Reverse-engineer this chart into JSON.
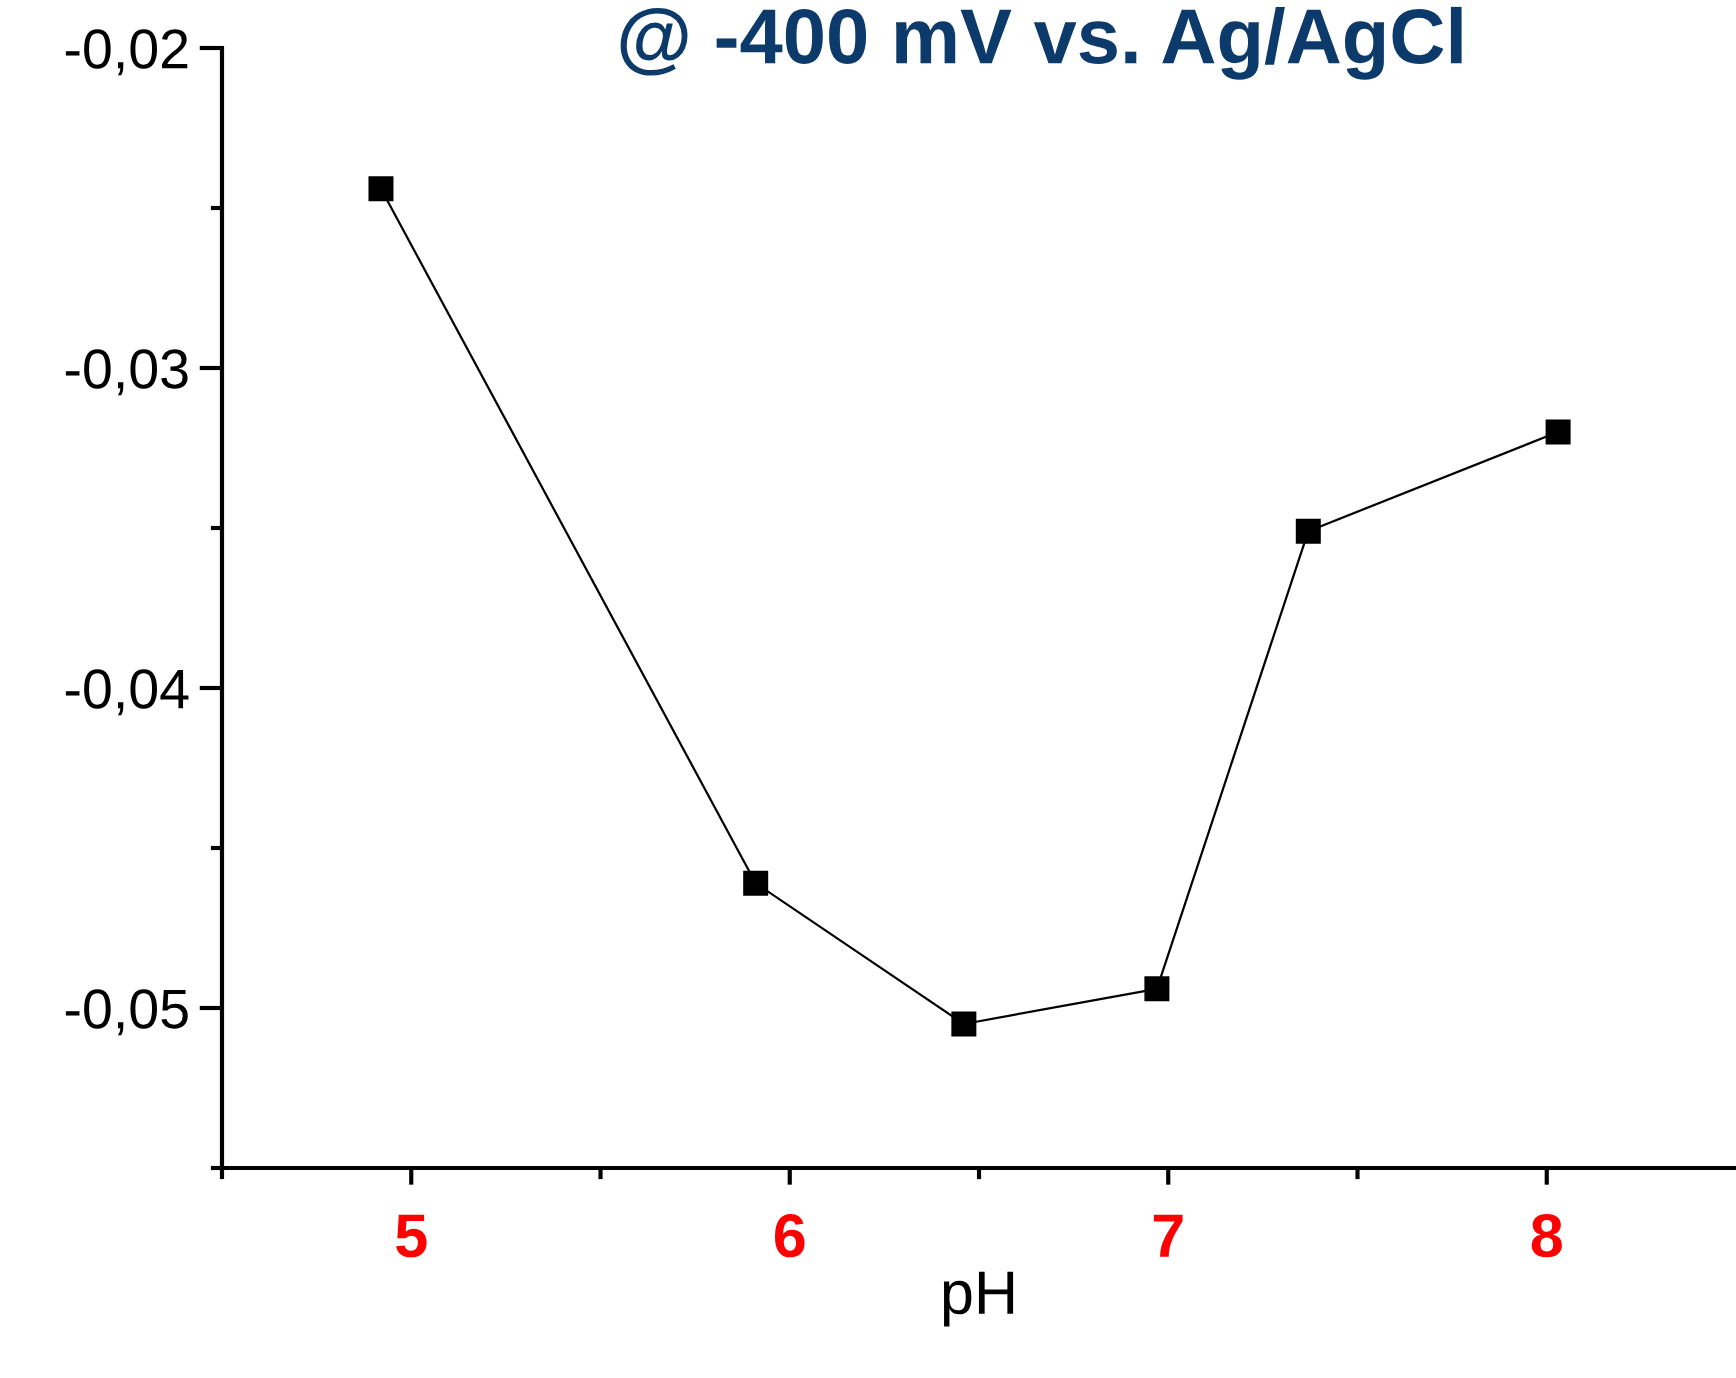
{
  "chart_data": {
    "type": "line",
    "title": "@ -400 mV vs. Ag/AgCl",
    "xlabel": "pH",
    "x": [
      4.92,
      5.91,
      6.46,
      6.97,
      7.37,
      8.03
    ],
    "series": [
      {
        "color": "#000000",
        "values": [
          -0.0244,
          -0.0461,
          -0.0505,
          -0.0494,
          -0.0351,
          -0.032
        ]
      }
    ],
    "marker": "square",
    "line_style": "solid",
    "grid": false,
    "legend": false,
    "xlim": [
      4.5,
      8.5
    ],
    "xticks": [
      {
        "value": 4.5,
        "label": null
      },
      5,
      {
        "value": 5.5,
        "label": null
      },
      6,
      {
        "value": 6.5,
        "label": null
      },
      7,
      {
        "value": 7.5,
        "label": null
      },
      8
    ],
    "ylim": [
      -0.055,
      -0.02
    ],
    "yticks": [
      {
        "value": -0.02,
        "label": "-0,02"
      },
      {
        "value": -0.025,
        "label": null
      },
      {
        "value": -0.03,
        "label": "-0,03"
      },
      {
        "value": -0.035,
        "label": null
      },
      {
        "value": -0.04,
        "label": "-0,04"
      },
      {
        "value": -0.045,
        "label": null
      },
      {
        "value": -0.05,
        "label": "-0,05"
      },
      {
        "value": -0.055,
        "label": null
      }
    ]
  }
}
